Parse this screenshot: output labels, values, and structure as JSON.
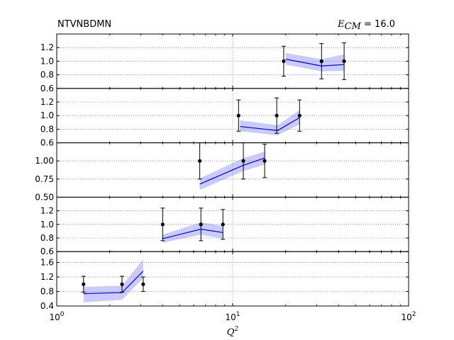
{
  "title_left": "NTVNBDMN",
  "title_right": {
    "symbol": "E",
    "subscript": "CM",
    "value": " = 16.0"
  },
  "xlabel": {
    "symbol": "Q",
    "superscript": "2"
  },
  "chart_data": {
    "type": "scatter",
    "title": "NTVNBDMN",
    "xscale": "log",
    "xlim": [
      1,
      100
    ],
    "x_ticks": [
      {
        "value": 1,
        "base": "10",
        "exp": "0"
      },
      {
        "value": 10,
        "base": "10",
        "exp": "1"
      },
      {
        "value": 100,
        "base": "10",
        "exp": "2"
      }
    ],
    "xlabel": "Q^2",
    "legend": "none",
    "grid": true,
    "colors": {
      "band": "#7777ee",
      "line": "#0000cc",
      "points": "#000000"
    },
    "panels": [
      {
        "ylim": [
          0.6,
          1.4
        ],
        "yticks": [
          0.6,
          0.8,
          1.0,
          1.2
        ],
        "ytick_labels": [
          "0.6",
          "0.8",
          "1.0",
          "1.2"
        ],
        "points": [
          {
            "x": 19.5,
            "y": 1.0,
            "err": 0.22
          },
          {
            "x": 32,
            "y": 1.0,
            "err": 0.26
          },
          {
            "x": 43,
            "y": 1.0,
            "err": 0.27
          }
        ],
        "theory": [
          {
            "x": 20,
            "y": 1.03,
            "lo": 0.95,
            "hi": 1.12
          },
          {
            "x": 32,
            "y": 0.93,
            "lo": 0.85,
            "hi": 1.03
          },
          {
            "x": 43,
            "y": 0.95,
            "lo": 0.86,
            "hi": 1.1
          }
        ]
      },
      {
        "ylim": [
          0.6,
          1.4
        ],
        "yticks": [
          0.6,
          0.8,
          1.0,
          1.2
        ],
        "ytick_labels": [
          "0.6",
          "0.8",
          "1.0",
          "1.2"
        ],
        "points": [
          {
            "x": 10.8,
            "y": 1.0,
            "err": 0.23
          },
          {
            "x": 17.8,
            "y": 1.0,
            "err": 0.26
          },
          {
            "x": 24,
            "y": 1.0,
            "err": 0.23
          }
        ],
        "theory": [
          {
            "x": 11,
            "y": 0.84,
            "lo": 0.77,
            "hi": 0.93
          },
          {
            "x": 18,
            "y": 0.78,
            "lo": 0.71,
            "hi": 0.86
          },
          {
            "x": 24,
            "y": 0.97,
            "lo": 0.87,
            "hi": 1.08
          }
        ]
      },
      {
        "ylim": [
          0.5,
          1.25
        ],
        "yticks": [
          0.5,
          0.75,
          1.0
        ],
        "ytick_labels": [
          "0.50",
          "0.75",
          "1.00"
        ],
        "points": [
          {
            "x": 6.5,
            "y": 1.0,
            "err": 0.25
          },
          {
            "x": 11.5,
            "y": 1.0,
            "err": 0.25
          },
          {
            "x": 15.2,
            "y": 1.0,
            "err": 0.23
          }
        ],
        "theory": [
          {
            "x": 6.5,
            "y": 0.68,
            "lo": 0.6,
            "hi": 0.76
          },
          {
            "x": 11.5,
            "y": 0.94,
            "lo": 0.86,
            "hi": 1.04
          },
          {
            "x": 15.2,
            "y": 1.04,
            "lo": 0.95,
            "hi": 1.13
          }
        ]
      },
      {
        "ylim": [
          0.6,
          1.4
        ],
        "yticks": [
          0.6,
          0.8,
          1.0,
          1.2
        ],
        "ytick_labels": [
          "0.6",
          "0.8",
          "1.0",
          "1.2"
        ],
        "points": [
          {
            "x": 4.0,
            "y": 1.0,
            "err": 0.24
          },
          {
            "x": 6.6,
            "y": 1.0,
            "err": 0.24
          },
          {
            "x": 8.8,
            "y": 1.0,
            "err": 0.22
          }
        ],
        "theory": [
          {
            "x": 4.0,
            "y": 0.79,
            "lo": 0.73,
            "hi": 0.85
          },
          {
            "x": 6.6,
            "y": 0.93,
            "lo": 0.85,
            "hi": 1.03
          },
          {
            "x": 8.8,
            "y": 0.88,
            "lo": 0.79,
            "hi": 0.98
          }
        ]
      },
      {
        "ylim": [
          0.4,
          1.9
        ],
        "yticks": [
          0.4,
          0.8,
          1.2,
          1.6
        ],
        "ytick_labels": [
          "0.4",
          "0.8",
          "1.2",
          "1.6"
        ],
        "points": [
          {
            "x": 1.42,
            "y": 1.0,
            "err": 0.22
          },
          {
            "x": 2.35,
            "y": 1.0,
            "err": 0.22
          },
          {
            "x": 3.1,
            "y": 1.0,
            "err": 0.2
          }
        ],
        "theory": [
          {
            "x": 1.42,
            "y": 0.74,
            "lo": 0.5,
            "hi": 0.93
          },
          {
            "x": 2.35,
            "y": 0.77,
            "lo": 0.57,
            "hi": 0.96
          },
          {
            "x": 3.1,
            "y": 1.36,
            "lo": 1.17,
            "hi": 1.69
          }
        ]
      }
    ]
  }
}
